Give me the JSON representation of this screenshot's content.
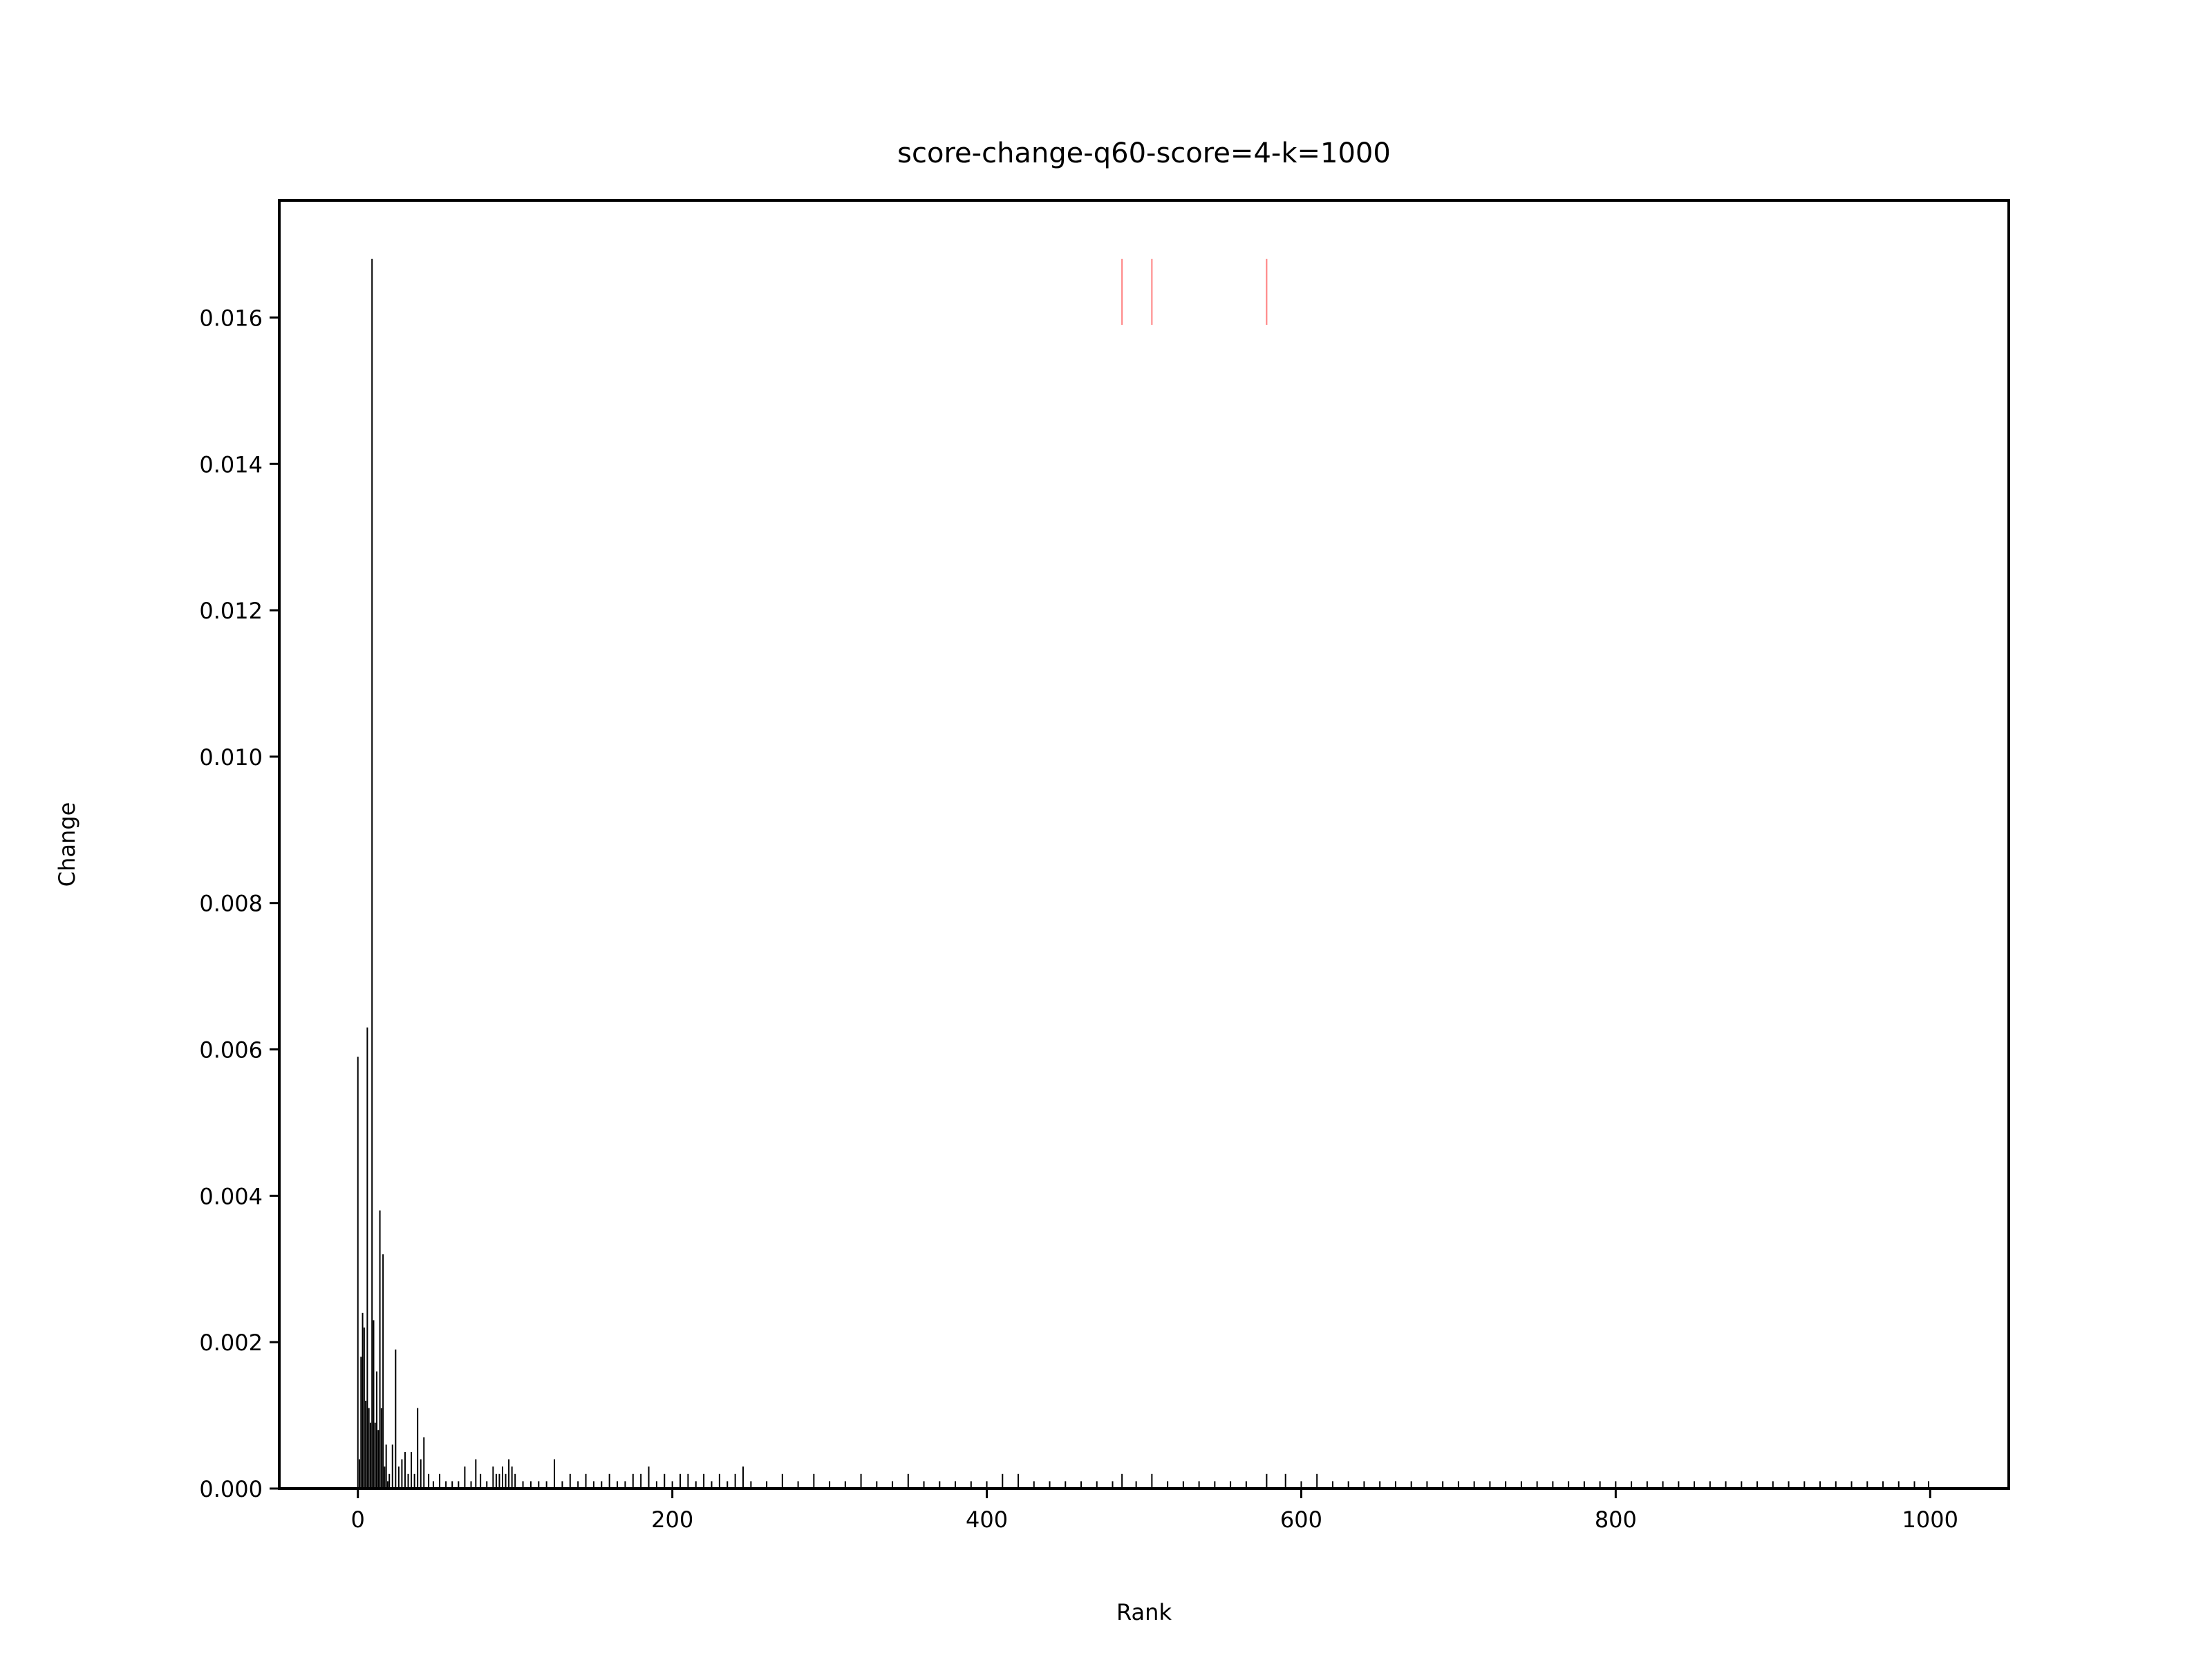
{
  "chart_data": {
    "type": "bar",
    "title": "score-change-q60-score=4-k=1000",
    "xlabel": "Rank",
    "ylabel": "Change",
    "xlim": [
      -50,
      1050
    ],
    "ylim": [
      0,
      0.0176
    ],
    "x_ticks": [
      0,
      200,
      400,
      600,
      800,
      1000
    ],
    "x_tick_labels": [
      "0",
      "200",
      "400",
      "600",
      "800",
      "1000"
    ],
    "y_ticks": [
      0,
      0.002,
      0.004,
      0.006,
      0.008,
      0.01,
      0.012,
      0.014,
      0.016
    ],
    "y_tick_labels": [
      "0.000",
      "0.002",
      "0.004",
      "0.006",
      "0.008",
      "0.010",
      "0.012",
      "0.014",
      "0.016"
    ],
    "grid": false,
    "legend": "none",
    "colors": {
      "bars": "#000000",
      "markers": "#ff8080"
    },
    "series": [
      {
        "values": [
          [
            0,
            0.0059
          ],
          [
            1,
            0.0004
          ],
          [
            2,
            0.0018
          ],
          [
            3,
            0.0024
          ],
          [
            4,
            0.0022
          ],
          [
            5,
            0.0012
          ],
          [
            6,
            0.0063
          ],
          [
            7,
            0.0011
          ],
          [
            8,
            0.0009
          ],
          [
            9,
            0.0168
          ],
          [
            10,
            0.0023
          ],
          [
            11,
            0.0009
          ],
          [
            12,
            0.0016
          ],
          [
            13,
            0.0008
          ],
          [
            14,
            0.0038
          ],
          [
            15,
            0.0011
          ],
          [
            16,
            0.0032
          ],
          [
            17,
            0.0003
          ],
          [
            18,
            0.0006
          ],
          [
            19,
            0.0001
          ],
          [
            20,
            0.0002
          ],
          [
            22,
            0.0006
          ],
          [
            24,
            0.0019
          ],
          [
            26,
            0.0003
          ],
          [
            28,
            0.0004
          ],
          [
            30,
            0.0005
          ],
          [
            32,
            0.0002
          ],
          [
            34,
            0.0005
          ],
          [
            36,
            0.0002
          ],
          [
            38,
            0.0011
          ],
          [
            40,
            0.0004
          ],
          [
            42,
            0.0007
          ],
          [
            45,
            0.0002
          ],
          [
            48,
            0.0001
          ],
          [
            52,
            0.0002
          ],
          [
            56,
            0.0001
          ],
          [
            60,
            0.0001
          ],
          [
            64,
            0.0001
          ],
          [
            68,
            0.0003
          ],
          [
            72,
            0.0001
          ],
          [
            75,
            0.0004
          ],
          [
            78,
            0.0002
          ],
          [
            82,
            0.0001
          ],
          [
            86,
            0.0003
          ],
          [
            88,
            0.0002
          ],
          [
            90,
            0.0002
          ],
          [
            92,
            0.0003
          ],
          [
            94,
            0.0002
          ],
          [
            96,
            0.0004
          ],
          [
            98,
            0.0003
          ],
          [
            100,
            0.0002
          ],
          [
            105,
            0.0001
          ],
          [
            110,
            0.0001
          ],
          [
            115,
            0.0001
          ],
          [
            120,
            0.0001
          ],
          [
            125,
            0.0004
          ],
          [
            130,
            0.0001
          ],
          [
            135,
            0.0002
          ],
          [
            140,
            0.0001
          ],
          [
            145,
            0.0002
          ],
          [
            150,
            0.0001
          ],
          [
            155,
            0.0001
          ],
          [
            160,
            0.0002
          ],
          [
            165,
            0.0001
          ],
          [
            170,
            0.0001
          ],
          [
            175,
            0.0002
          ],
          [
            180,
            0.0002
          ],
          [
            185,
            0.0003
          ],
          [
            190,
            0.0001
          ],
          [
            195,
            0.0002
          ],
          [
            200,
            0.0001
          ],
          [
            205,
            0.0002
          ],
          [
            210,
            0.0002
          ],
          [
            215,
            0.0001
          ],
          [
            220,
            0.0002
          ],
          [
            225,
            0.0001
          ],
          [
            230,
            0.0002
          ],
          [
            235,
            0.0001
          ],
          [
            240,
            0.0002
          ],
          [
            245,
            0.0003
          ],
          [
            250,
            0.0001
          ],
          [
            260,
            0.0001
          ],
          [
            270,
            0.0002
          ],
          [
            280,
            0.0001
          ],
          [
            290,
            0.0002
          ],
          [
            300,
            0.0001
          ],
          [
            310,
            0.0001
          ],
          [
            320,
            0.0002
          ],
          [
            330,
            0.0001
          ],
          [
            340,
            0.0001
          ],
          [
            350,
            0.0002
          ],
          [
            360,
            0.0001
          ],
          [
            370,
            0.0001
          ],
          [
            380,
            0.0001
          ],
          [
            390,
            0.0001
          ],
          [
            400,
            0.0001
          ],
          [
            410,
            0.0002
          ],
          [
            420,
            0.0002
          ],
          [
            430,
            0.0001
          ],
          [
            440,
            0.0001
          ],
          [
            450,
            0.0001
          ],
          [
            460,
            0.0001
          ],
          [
            470,
            0.0001
          ],
          [
            480,
            0.0001
          ],
          [
            486,
            0.0002
          ],
          [
            495,
            0.0001
          ],
          [
            505,
            0.0002
          ],
          [
            515,
            0.0001
          ],
          [
            525,
            0.0001
          ],
          [
            535,
            0.0001
          ],
          [
            545,
            0.0001
          ],
          [
            555,
            0.0001
          ],
          [
            565,
            0.0001
          ],
          [
            578,
            0.0002
          ],
          [
            590,
            0.0002
          ],
          [
            600,
            0.0001
          ],
          [
            610,
            0.0002
          ],
          [
            620,
            0.0001
          ],
          [
            630,
            0.0001
          ],
          [
            640,
            0.0001
          ],
          [
            650,
            0.0001
          ],
          [
            660,
            0.0001
          ],
          [
            670,
            0.0001
          ],
          [
            680,
            0.0001
          ],
          [
            690,
            0.0001
          ],
          [
            700,
            0.0001
          ],
          [
            710,
            0.0001
          ],
          [
            720,
            0.0001
          ],
          [
            730,
            0.0001
          ],
          [
            740,
            0.0001
          ],
          [
            750,
            0.0001
          ],
          [
            760,
            0.0001
          ],
          [
            770,
            0.0001
          ],
          [
            780,
            0.0001
          ],
          [
            790,
            0.0001
          ],
          [
            800,
            0.0001
          ],
          [
            810,
            0.0001
          ],
          [
            820,
            0.0001
          ],
          [
            830,
            0.0001
          ],
          [
            840,
            0.0001
          ],
          [
            850,
            0.0001
          ],
          [
            860,
            0.0001
          ],
          [
            870,
            0.0001
          ],
          [
            880,
            0.0001
          ],
          [
            890,
            0.0001
          ],
          [
            900,
            0.0001
          ],
          [
            910,
            0.0001
          ],
          [
            920,
            0.0001
          ],
          [
            930,
            0.0001
          ],
          [
            940,
            0.0001
          ],
          [
            950,
            0.0001
          ],
          [
            960,
            0.0001
          ],
          [
            970,
            0.0001
          ],
          [
            980,
            0.0001
          ],
          [
            990,
            0.0001
          ],
          [
            999,
            0.0001
          ]
        ]
      }
    ],
    "markers": {
      "x": [
        486,
        505,
        578
      ],
      "y_range": [
        0.0159,
        0.0168
      ]
    }
  }
}
